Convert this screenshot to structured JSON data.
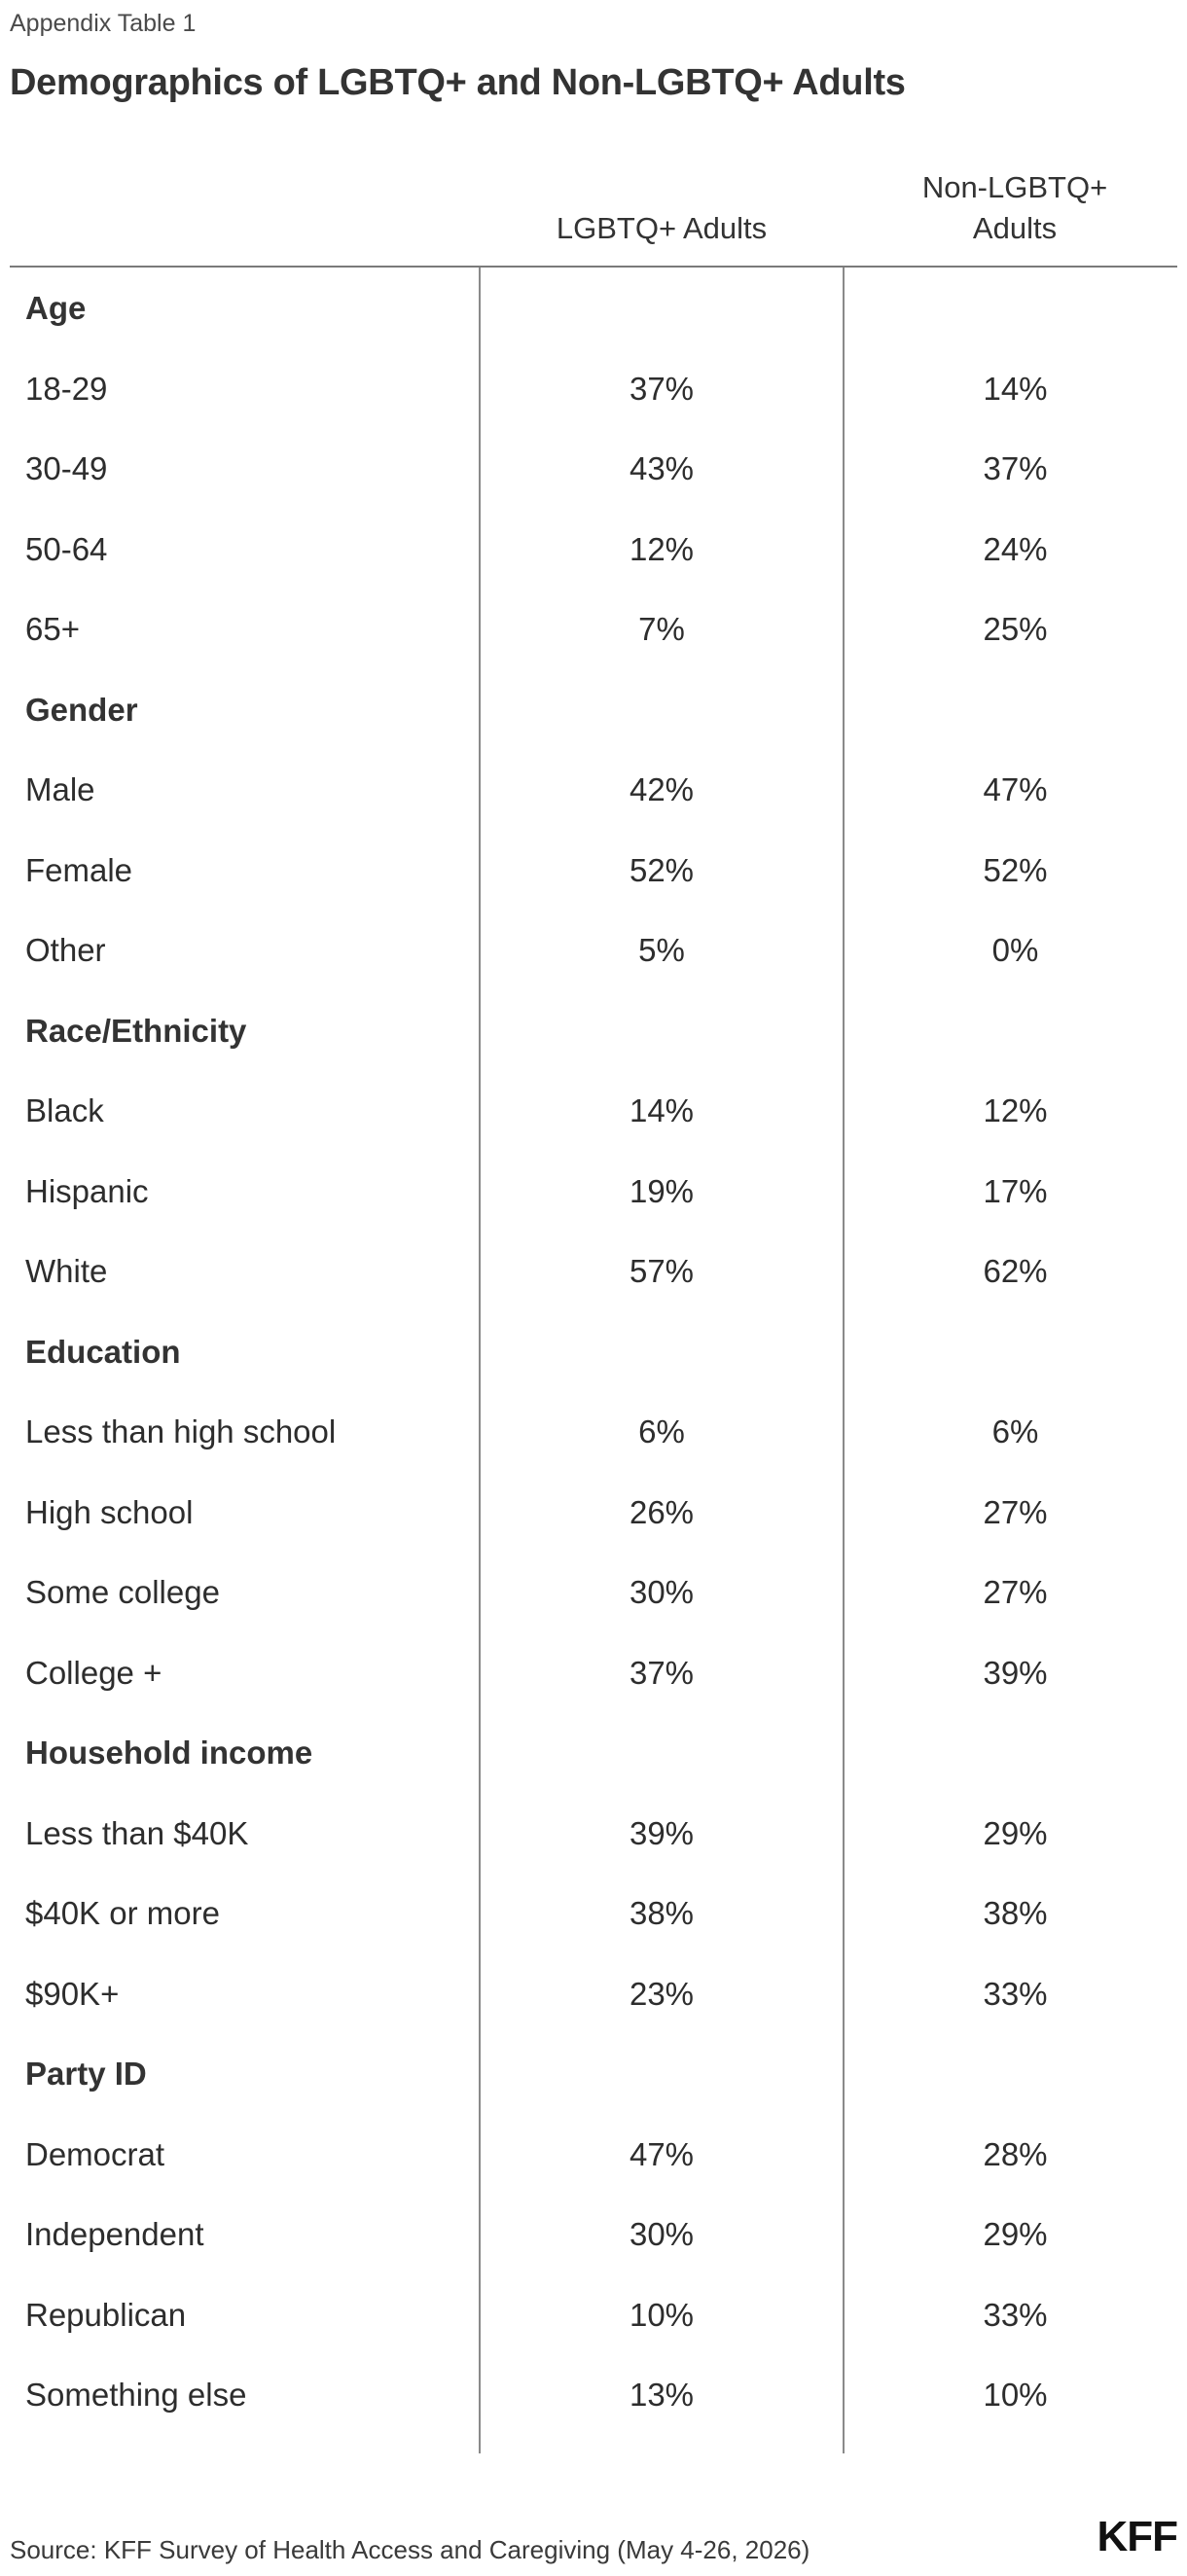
{
  "header": {
    "label": "Appendix Table 1",
    "title": "Demographics of LGBTQ+ and Non-LGBTQ+ Adults"
  },
  "chart_data": {
    "type": "table",
    "columns": [
      "LGBTQ+ Adults",
      "Non-LGBTQ+ Adults"
    ],
    "column_header_lines": [
      [
        "LGBTQ+ Adults"
      ],
      [
        "Non-LGBTQ+",
        "Adults"
      ]
    ],
    "sections": [
      {
        "name": "Age",
        "rows": [
          {
            "label": "18-29",
            "values": [
              "37%",
              "14%"
            ]
          },
          {
            "label": "30-49",
            "values": [
              "43%",
              "37%"
            ]
          },
          {
            "label": "50-64",
            "values": [
              "12%",
              "24%"
            ]
          },
          {
            "label": "65+",
            "values": [
              "7%",
              "25%"
            ]
          }
        ]
      },
      {
        "name": "Gender",
        "rows": [
          {
            "label": "Male",
            "values": [
              "42%",
              "47%"
            ]
          },
          {
            "label": "Female",
            "values": [
              "52%",
              "52%"
            ]
          },
          {
            "label": "Other",
            "values": [
              "5%",
              "0%"
            ]
          }
        ]
      },
      {
        "name": "Race/Ethnicity",
        "rows": [
          {
            "label": "Black",
            "values": [
              "14%",
              "12%"
            ]
          },
          {
            "label": "Hispanic",
            "values": [
              "19%",
              "17%"
            ]
          },
          {
            "label": "White",
            "values": [
              "57%",
              "62%"
            ]
          }
        ]
      },
      {
        "name": "Education",
        "rows": [
          {
            "label": "Less than high school",
            "values": [
              "6%",
              "6%"
            ]
          },
          {
            "label": "High school",
            "values": [
              "26%",
              "27%"
            ]
          },
          {
            "label": "Some college",
            "values": [
              "30%",
              "27%"
            ]
          },
          {
            "label": "College +",
            "values": [
              "37%",
              "39%"
            ]
          }
        ]
      },
      {
        "name": "Household income",
        "rows": [
          {
            "label": "Less than $40K",
            "values": [
              "39%",
              "29%"
            ]
          },
          {
            "label": "$40K or more",
            "values": [
              "38%",
              "38%"
            ]
          },
          {
            "label": "$90K+",
            "values": [
              "23%",
              "33%"
            ]
          }
        ]
      },
      {
        "name": "Party ID",
        "rows": [
          {
            "label": "Democrat",
            "values": [
              "47%",
              "28%"
            ]
          },
          {
            "label": "Independent",
            "values": [
              "30%",
              "29%"
            ]
          },
          {
            "label": "Republican",
            "values": [
              "10%",
              "33%"
            ]
          },
          {
            "label": "Something else",
            "values": [
              "13%",
              "10%"
            ]
          }
        ]
      }
    ]
  },
  "footer": {
    "source": "Source: KFF Survey of Health Access and Caregiving (May 4-26, 2026)",
    "logo_text": "KFF"
  }
}
